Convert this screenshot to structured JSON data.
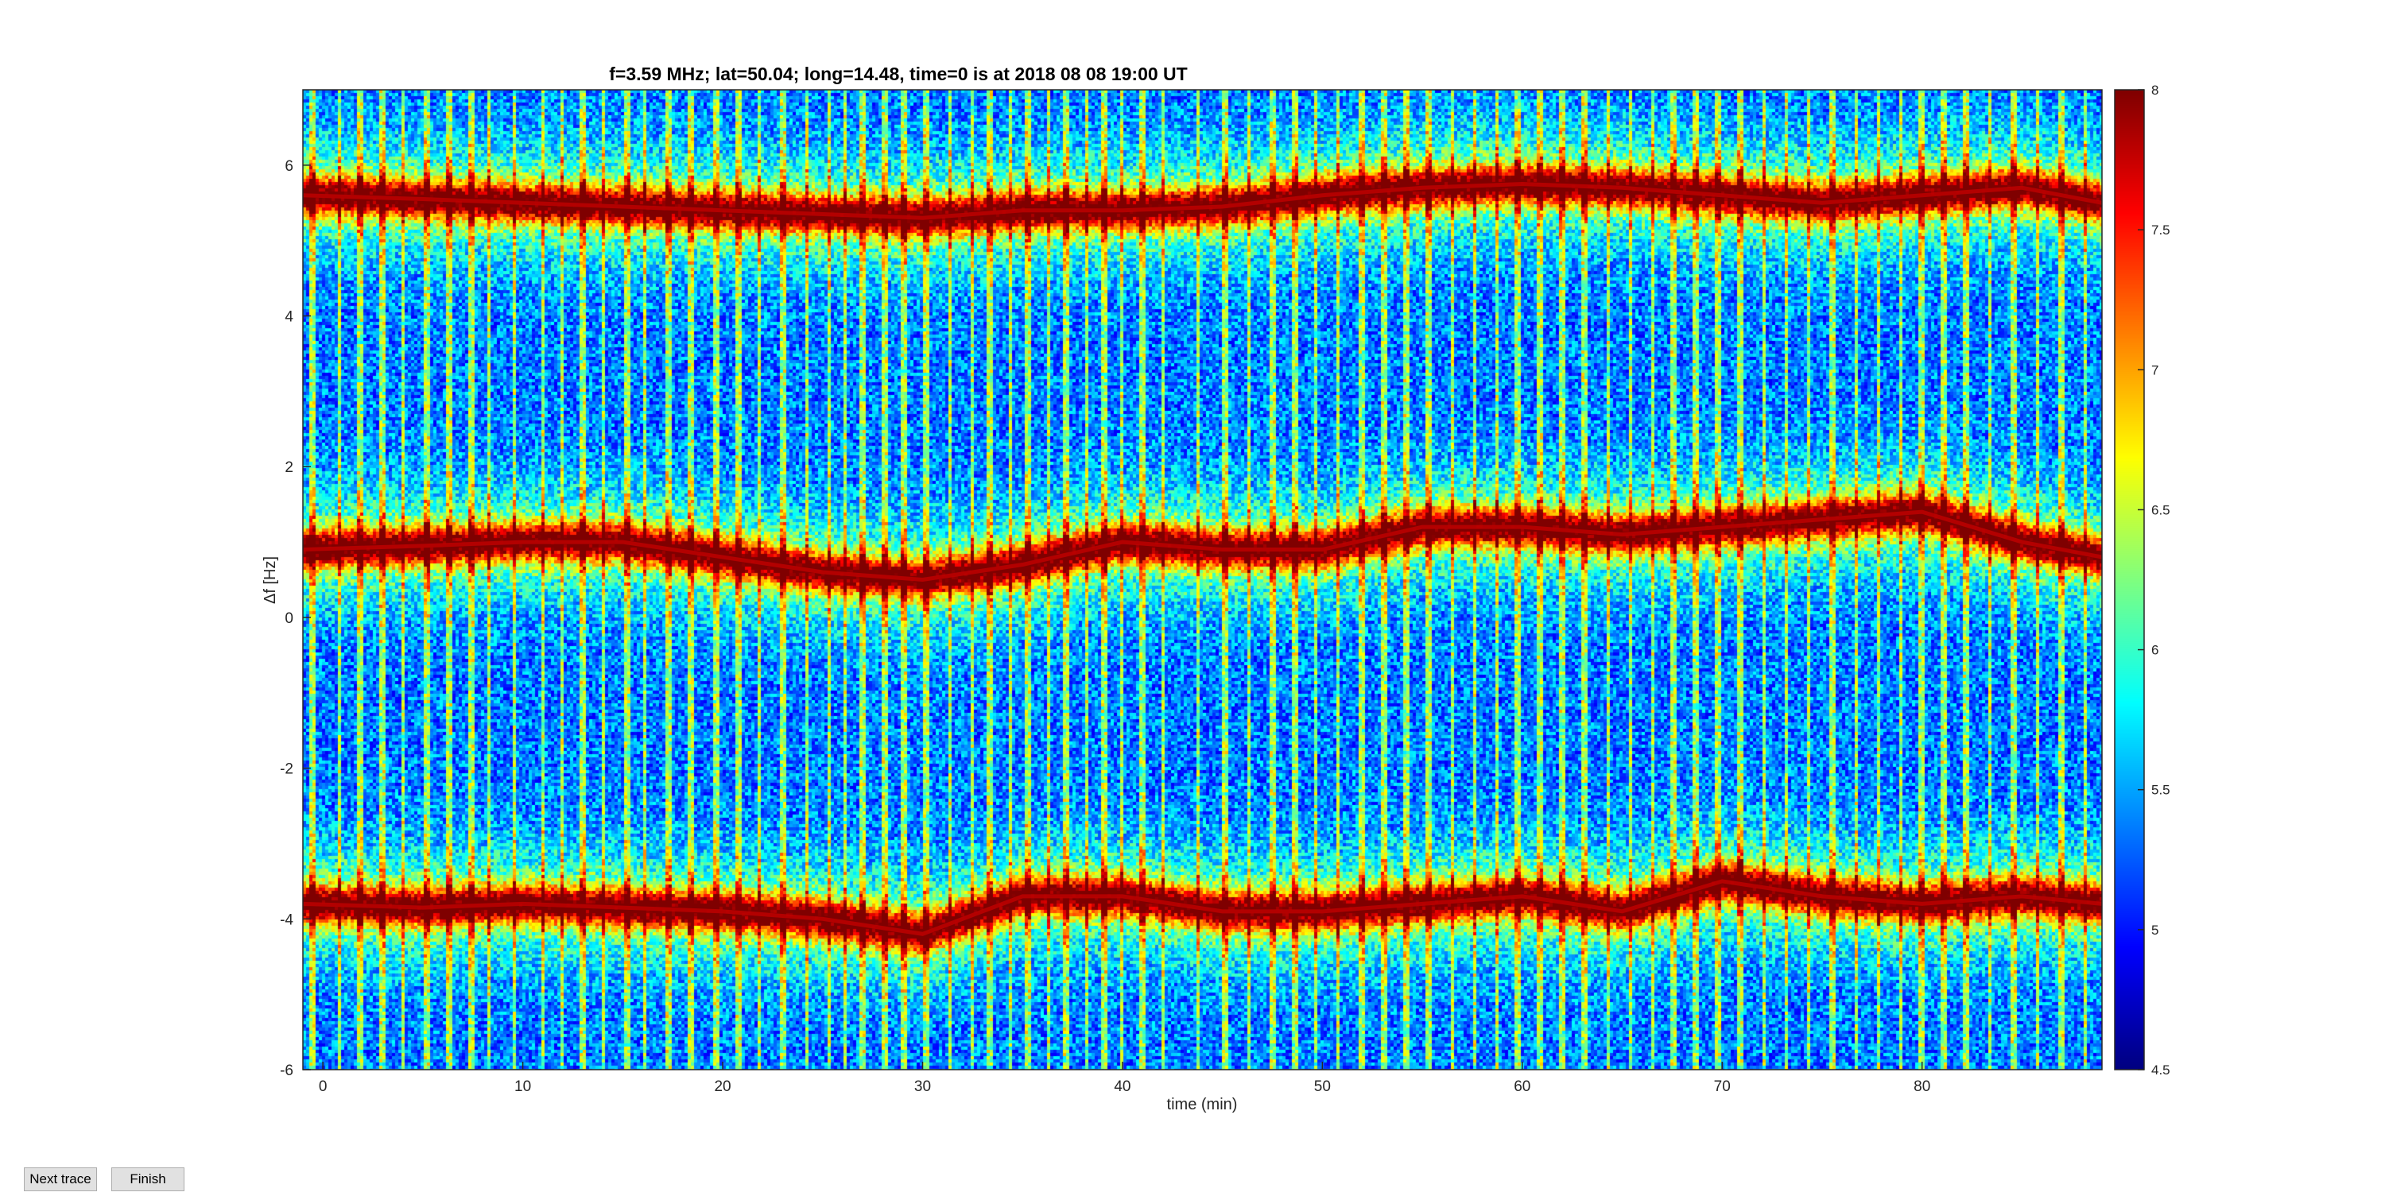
{
  "figure": {
    "title": "f=3.59 MHz;  lat=50.04; long=14.48, time=0 is at 2018 08 08 19:00 UT"
  },
  "buttons": {
    "next_label": "Next trace",
    "finish_label": "Finish"
  },
  "chart_data": {
    "type": "heatmap",
    "title": "f=3.59 MHz;  lat=50.04; long=14.48, time=0 is at 2018 08 08 19:00 UT",
    "xlabel": "time (min)",
    "ylabel": "Δf [Hz]",
    "xlim": [
      -1,
      89
    ],
    "ylim": [
      -6,
      7
    ],
    "xticks": [
      0,
      10,
      20,
      30,
      40,
      50,
      60,
      70,
      80
    ],
    "yticks": [
      -6,
      -4,
      -2,
      0,
      2,
      4,
      6
    ],
    "colormap": "jet",
    "clim": [
      4.5,
      8
    ],
    "colorbar_ticks": [
      4.5,
      5,
      5.5,
      6,
      6.5,
      7,
      7.5,
      8
    ],
    "colorbar_tick_labels": [
      "4.5",
      "5",
      "5.5",
      "6",
      "6.5",
      "7",
      "7.5",
      "8"
    ],
    "series": [
      {
        "x": [
          -1,
          5,
          10,
          15,
          20,
          25,
          30,
          35,
          40,
          45,
          50,
          55,
          60,
          65,
          70,
          75,
          80,
          85,
          89
        ],
        "y": [
          5.6,
          5.55,
          5.5,
          5.45,
          5.4,
          5.35,
          5.3,
          5.4,
          5.4,
          5.45,
          5.6,
          5.7,
          5.75,
          5.7,
          5.6,
          5.5,
          5.6,
          5.7,
          5.5
        ]
      },
      {
        "x": [
          -1,
          5,
          10,
          15,
          20,
          25,
          30,
          35,
          40,
          45,
          50,
          55,
          60,
          65,
          70,
          75,
          80,
          85,
          89
        ],
        "y": [
          0.9,
          0.95,
          1.0,
          1.0,
          0.8,
          0.6,
          0.5,
          0.7,
          1.0,
          0.9,
          0.9,
          1.2,
          1.2,
          1.1,
          1.2,
          1.3,
          1.4,
          1.0,
          0.8
        ]
      },
      {
        "x": [
          -1,
          5,
          10,
          15,
          20,
          25,
          30,
          35,
          40,
          45,
          50,
          55,
          60,
          65,
          70,
          75,
          80,
          85,
          89
        ],
        "y": [
          -3.8,
          -3.85,
          -3.8,
          -3.85,
          -3.9,
          -4.0,
          -4.2,
          -3.7,
          -3.7,
          -3.9,
          -3.9,
          -3.8,
          -3.7,
          -3.9,
          -3.5,
          -3.7,
          -3.8,
          -3.7,
          -3.8
        ]
      }
    ],
    "vertical_gaps_x": [
      -0.5,
      0.8,
      1.9,
      3.0,
      4.0,
      5.2,
      6.3,
      7.4,
      8.3,
      9.6,
      11.0,
      12.0,
      13.0,
      14.0,
      15.2,
      16.1,
      17.3,
      18.4,
      19.7,
      20.8,
      21.8,
      23.0,
      24.2,
      25.3,
      26.1,
      27.0,
      28.1,
      29.1,
      30.2,
      31.4,
      32.5,
      33.4,
      34.4,
      35.3,
      36.3,
      37.2,
      38.2,
      39.1,
      40.0,
      41.0,
      42.0,
      43.8,
      45.1,
      46.3,
      47.5,
      48.6,
      49.7,
      50.8,
      52.0,
      53.1,
      54.2,
      55.3,
      56.5,
      57.6,
      58.7,
      59.8,
      60.9,
      62.0,
      63.1,
      64.3,
      65.4,
      66.5,
      67.6,
      68.7,
      69.8,
      70.9,
      72.1,
      73.2,
      74.3,
      75.5,
      76.7,
      77.8,
      78.9,
      80.0,
      81.1,
      82.2,
      83.4,
      84.6,
      85.8,
      87.0,
      88.2
    ]
  }
}
